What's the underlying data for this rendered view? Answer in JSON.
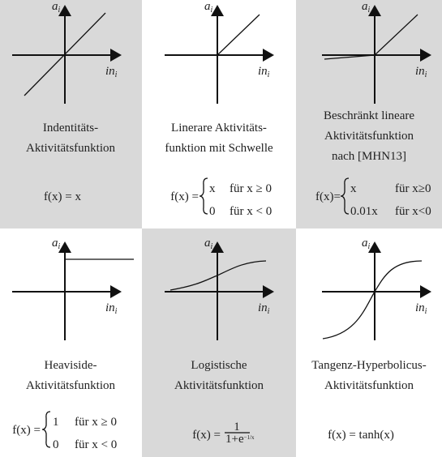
{
  "panels": [
    {
      "y_axis": {
        "label": "a",
        "sub": "i"
      },
      "x_axis": {
        "label": "in",
        "sub": "i"
      },
      "title": [
        "Indentitäts-",
        "Aktivitätsfunktion"
      ],
      "formula": {
        "lhs": "f(x) = x"
      }
    },
    {
      "y_axis": {
        "label": "a",
        "sub": "i"
      },
      "x_axis": {
        "label": "in",
        "sub": "i"
      },
      "title": [
        "Linerare Aktivitäts-",
        "funktion mit Schwelle"
      ],
      "formula": {
        "lhs": "f(x) =",
        "cases": [
          [
            "x",
            "für x ≥ 0"
          ],
          [
            "0",
            "für x < 0"
          ]
        ]
      }
    },
    {
      "y_axis": {
        "label": "a",
        "sub": "i"
      },
      "x_axis": {
        "label": "in",
        "sub": "i"
      },
      "title": [
        "Beschränkt lineare",
        "Aktivitätsfunktion",
        "nach [MHN13]"
      ],
      "formula": {
        "lhs": "f(x)=",
        "cases": [
          [
            "x",
            "für x≥0"
          ],
          [
            "0.01x",
            "für x<0"
          ]
        ]
      }
    },
    {
      "y_axis": {
        "label": "a",
        "sub": "i"
      },
      "x_axis": {
        "label": "in",
        "sub": "i"
      },
      "title": [
        "Heaviside-",
        "Aktivitätsfunktion"
      ],
      "formula": {
        "lhs": "f(x) =",
        "cases": [
          [
            "1",
            "für x ≥ 0"
          ],
          [
            "0",
            "für x < 0"
          ]
        ]
      }
    },
    {
      "y_axis": {
        "label": "a",
        "sub": "i"
      },
      "x_axis": {
        "label": "in",
        "sub": "i"
      },
      "title": [
        "Logistische",
        "Aktivitätsfunktion"
      ],
      "formula": {
        "lhs": "f(x) =",
        "numerator": "1",
        "denominator": "1+e",
        "exponent": "−1/x"
      }
    },
    {
      "y_axis": {
        "label": "a",
        "sub": "i"
      },
      "x_axis": {
        "label": "in",
        "sub": "i"
      },
      "title": [
        "Tangenz-Hyperbolicus-",
        "Aktivitätsfunktion"
      ],
      "formula": {
        "lhs": "f(x) = tanh(x)"
      }
    }
  ]
}
